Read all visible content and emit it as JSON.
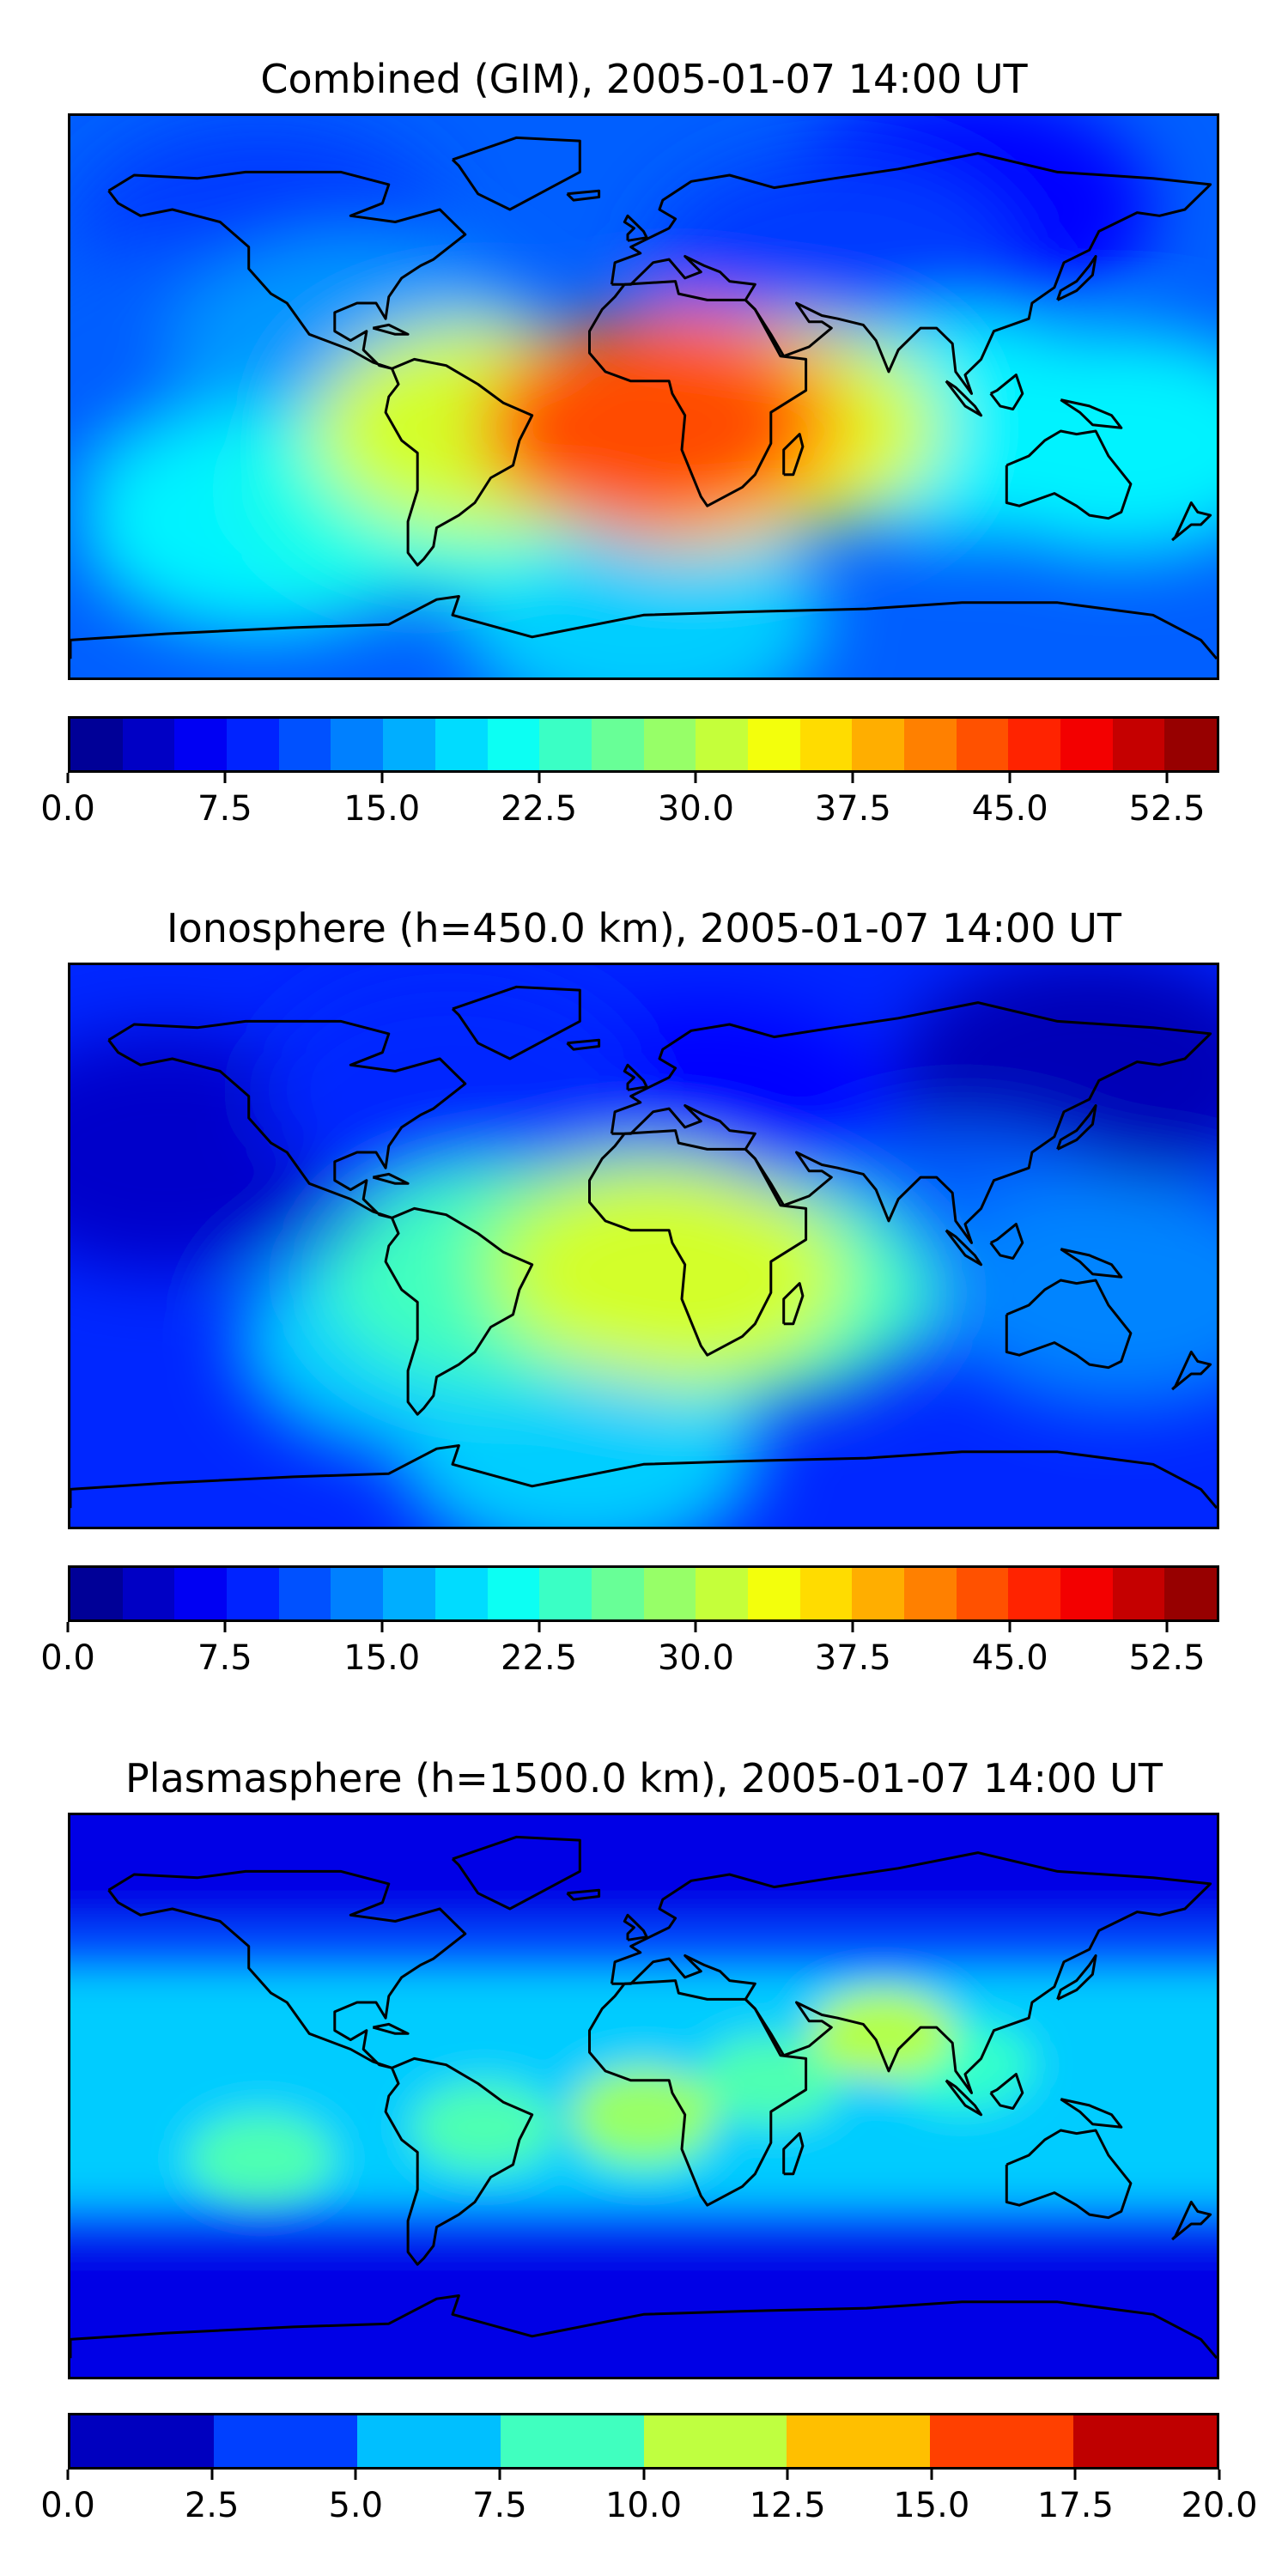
{
  "chart_data": [
    {
      "type": "heatmap",
      "title": "Combined (GIM), 2005-01-07 14:00 UT",
      "map_projection": "global lon/lat map with coastlines",
      "colormap": "jet",
      "levels_min": 0.0,
      "levels_max": 55.0,
      "n_levels": 22,
      "colorbar_ticks": [
        "0.0",
        "7.5",
        "15.0",
        "22.5",
        "30.0",
        "37.5",
        "45.0",
        "52.5"
      ],
      "tick_values": [
        0.0,
        7.5,
        15.0,
        22.5,
        30.0,
        37.5,
        45.0,
        52.5
      ],
      "features": [
        {
          "lon": 0,
          "lat": -10,
          "value": 44
        },
        {
          "lon": 10,
          "lat": -5,
          "value": 40
        },
        {
          "lon": 15,
          "lat": -15,
          "value": 36
        },
        {
          "lon": -50,
          "lat": -10,
          "value": 32
        },
        {
          "lon": 40,
          "lat": -10,
          "value": 32
        },
        {
          "lon": -70,
          "lat": -30,
          "value": 22
        },
        {
          "lon": 100,
          "lat": -10,
          "value": 20
        },
        {
          "lon": 150,
          "lat": -15,
          "value": 20
        },
        {
          "lon": -120,
          "lat": -40,
          "value": 20
        },
        {
          "lon": 60,
          "lat": 40,
          "value": 10
        },
        {
          "lon": -120,
          "lat": 50,
          "value": 10
        },
        {
          "lon": 100,
          "lat": 60,
          "value": 7
        },
        {
          "lon": -150,
          "lat": 10,
          "value": 12
        },
        {
          "lon": 0,
          "lat": -70,
          "value": 18
        },
        {
          "lon": -90,
          "lat": 15,
          "value": 15
        }
      ],
      "background_value": 12
    },
    {
      "type": "heatmap",
      "title": "Ionosphere  (h=450.0 km), 2005-01-07 14:00 UT",
      "map_projection": "global lon/lat map with coastlines",
      "colormap": "jet",
      "levels_min": 0.0,
      "levels_max": 55.0,
      "n_levels": 22,
      "colorbar_ticks": [
        "0.0",
        "7.5",
        "15.0",
        "22.5",
        "30.0",
        "37.5",
        "45.0",
        "52.5"
      ],
      "tick_values": [
        0.0,
        7.5,
        15.0,
        22.5,
        30.0,
        37.5,
        45.0,
        52.5
      ],
      "features": [
        {
          "lon": 10,
          "lat": -10,
          "value": 32
        },
        {
          "lon": 0,
          "lat": -5,
          "value": 28
        },
        {
          "lon": -45,
          "lat": -10,
          "value": 24
        },
        {
          "lon": 35,
          "lat": -15,
          "value": 24
        },
        {
          "lon": -70,
          "lat": -30,
          "value": 18
        },
        {
          "lon": 150,
          "lat": -15,
          "value": 14
        },
        {
          "lon": 100,
          "lat": 0,
          "value": 12
        },
        {
          "lon": 20,
          "lat": 40,
          "value": 7
        },
        {
          "lon": -150,
          "lat": 30,
          "value": 4
        },
        {
          "lon": 140,
          "lat": 55,
          "value": 3
        },
        {
          "lon": -60,
          "lat": 50,
          "value": 9
        },
        {
          "lon": -20,
          "lat": -65,
          "value": 18
        }
      ],
      "background_value": 9
    },
    {
      "type": "heatmap",
      "title": "Plasmasphere (h=1500.0 km), 2005-01-07 14:00 UT",
      "map_projection": "global lon/lat map with coastlines",
      "colormap": "jet",
      "levels_min": 0.0,
      "levels_max": 20.0,
      "n_levels": 8,
      "colorbar_ticks": [
        "0.0",
        "2.5",
        "5.0",
        "7.5",
        "10.0",
        "12.5",
        "15.0",
        "17.5",
        "20.0"
      ],
      "tick_values": [
        0.0,
        2.5,
        5.0,
        7.5,
        10.0,
        12.5,
        15.0,
        17.5,
        20.0
      ],
      "bands": [
        {
          "lat_from": 90,
          "lat_to": 55,
          "value": 2.0
        },
        {
          "lat_from": 55,
          "lat_to": 40,
          "value": 4.0
        },
        {
          "lat_from": 40,
          "lat_to": -35,
          "value": 6.5
        },
        {
          "lat_from": -35,
          "lat_to": -45,
          "value": 4.0
        },
        {
          "lat_from": -45,
          "lat_to": -90,
          "value": 2.0
        }
      ],
      "features": [
        {
          "lon": 0,
          "lat": -10,
          "value": 9
        },
        {
          "lon": -50,
          "lat": -10,
          "value": 9
        },
        {
          "lon": 40,
          "lat": 5,
          "value": 9
        },
        {
          "lon": 75,
          "lat": 20,
          "value": 11
        },
        {
          "lon": -120,
          "lat": -20,
          "value": 9
        },
        {
          "lon": 100,
          "lat": 10,
          "value": 8.5
        },
        {
          "lon": 0,
          "lat": -5,
          "value": 10.5
        }
      ]
    }
  ]
}
